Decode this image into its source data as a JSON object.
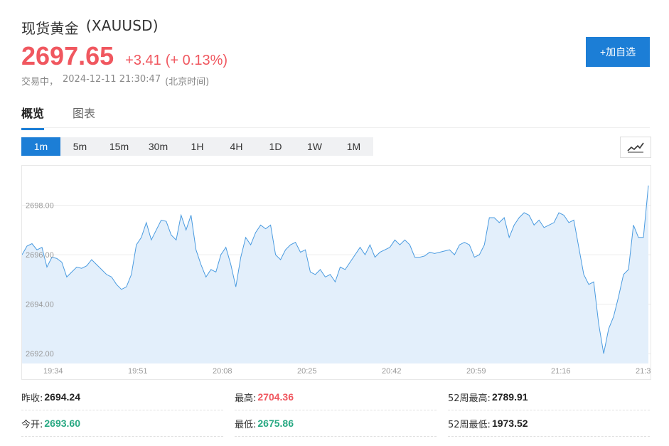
{
  "header": {
    "name": "现货黄金",
    "symbol": "(XAUUSD)",
    "price": "2697.65",
    "change": "+3.41",
    "change_pct": "(+ 0.13%)",
    "status": "交易中，",
    "timestamp": "2024-12-11 21:30:47",
    "timezone": "(北京时间)",
    "add_watchlist": "+加自选"
  },
  "tabs": [
    {
      "label": "概览",
      "active": true
    },
    {
      "label": "图表",
      "active": false
    }
  ],
  "intervals": [
    {
      "label": "1m",
      "active": true
    },
    {
      "label": "5m",
      "active": false
    },
    {
      "label": "15m",
      "active": false
    },
    {
      "label": "30m",
      "active": false
    },
    {
      "label": "1H",
      "active": false
    },
    {
      "label": "4H",
      "active": false
    },
    {
      "label": "1D",
      "active": false
    },
    {
      "label": "1W",
      "active": false
    },
    {
      "label": "1M",
      "active": false
    }
  ],
  "chart_type_icon": "line-chart-icon",
  "colors": {
    "up": "#f0575f",
    "down": "#27a882",
    "accent": "#1c7ed6",
    "line": "#4a9be0",
    "area": "#e3effb"
  },
  "chart_data": {
    "type": "area",
    "ylim": [
      2691.6,
      2699.6
    ],
    "y_ticks": [
      "2698.00",
      "2696.00",
      "2694.00",
      "2692.00"
    ],
    "x_ticks": [
      "19:34",
      "19:51",
      "20:08",
      "20:25",
      "20:42",
      "20:59",
      "21:16",
      "21:3"
    ],
    "values": [
      2696.0,
      2696.35,
      2696.45,
      2696.2,
      2696.3,
      2695.5,
      2695.9,
      2695.85,
      2695.7,
      2695.1,
      2695.3,
      2695.5,
      2695.45,
      2695.55,
      2695.8,
      2695.6,
      2695.4,
      2695.2,
      2695.1,
      2694.8,
      2694.6,
      2694.7,
      2695.2,
      2696.4,
      2696.7,
      2697.3,
      2696.6,
      2697.0,
      2697.4,
      2697.35,
      2696.8,
      2696.6,
      2697.6,
      2697.0,
      2697.6,
      2696.2,
      2695.6,
      2695.1,
      2695.4,
      2695.3,
      2696.0,
      2696.3,
      2695.6,
      2694.7,
      2695.9,
      2696.7,
      2696.4,
      2696.9,
      2697.2,
      2697.05,
      2697.2,
      2696.0,
      2695.8,
      2696.2,
      2696.4,
      2696.5,
      2696.1,
      2696.2,
      2695.3,
      2695.2,
      2695.4,
      2695.1,
      2695.2,
      2694.9,
      2695.5,
      2695.4,
      2695.7,
      2696.0,
      2696.3,
      2696.0,
      2696.4,
      2695.9,
      2696.1,
      2696.2,
      2696.3,
      2696.6,
      2696.4,
      2696.6,
      2696.4,
      2695.9,
      2695.9,
      2695.95,
      2696.1,
      2696.05,
      2696.1,
      2696.15,
      2696.2,
      2696.0,
      2696.4,
      2696.5,
      2696.4,
      2695.9,
      2696.0,
      2696.4,
      2697.5,
      2697.5,
      2697.3,
      2697.5,
      2696.7,
      2697.2,
      2697.5,
      2697.7,
      2697.6,
      2697.2,
      2697.4,
      2697.1,
      2697.2,
      2697.3,
      2697.7,
      2697.6,
      2697.3,
      2697.4,
      2696.3,
      2695.2,
      2694.8,
      2694.9,
      2693.2,
      2692.0,
      2693.0,
      2693.5,
      2694.3,
      2695.2,
      2695.4,
      2697.2,
      2696.7,
      2696.7,
      2698.8
    ]
  },
  "stats": [
    [
      {
        "label": "昨收:",
        "value": "2694.24",
        "color": "dark"
      },
      {
        "label": "最高:",
        "value": "2704.36",
        "color": "red"
      },
      {
        "label": "52周最高:",
        "value": "2789.91",
        "color": "dark"
      }
    ],
    [
      {
        "label": "今开:",
        "value": "2693.60",
        "color": "green"
      },
      {
        "label": "最低:",
        "value": "2675.86",
        "color": "green"
      },
      {
        "label": "52周最低:",
        "value": "1973.52",
        "color": "dark"
      }
    ]
  ]
}
